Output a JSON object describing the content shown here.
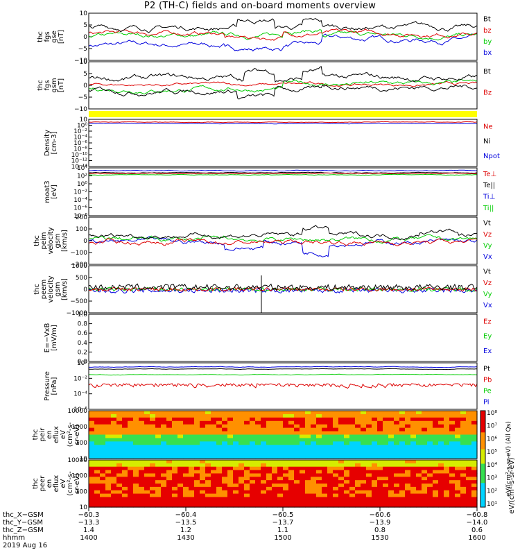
{
  "title": "P2 (TH-C) fields and on-board moments overview",
  "colors": {
    "black": "#000000",
    "red": "#dd0000",
    "green": "#00cc00",
    "blue": "#0000dd",
    "yellow": "#ffff00"
  },
  "chart_data": [
    {
      "type": "line",
      "ylabel": [
        "thc",
        "fgs",
        "gse",
        "[nT]"
      ],
      "ylim": [
        -10,
        10
      ],
      "yticks": [
        "10",
        "5",
        "0",
        "−5",
        "−10"
      ],
      "legend": [
        {
          "text": "Bt",
          "color": "black"
        },
        {
          "text": "bz",
          "color": "red"
        },
        {
          "text": "by",
          "color": "green"
        },
        {
          "text": "bx",
          "color": "blue"
        }
      ]
    },
    {
      "type": "line",
      "ylabel": [
        "thc",
        "fgs",
        "gsm",
        "[nT]"
      ],
      "ylim": [
        -10,
        10
      ],
      "yticks": [
        "10",
        "5",
        "0",
        "−5",
        "−10"
      ],
      "legend": [
        {
          "text": "Bt",
          "color": "black"
        },
        {
          "text": "Bz",
          "color": "red"
        }
      ]
    },
    {
      "type": "line",
      "ylabel": [
        "Density",
        "[cm-3]"
      ],
      "ylog": true,
      "yticks": [
        "10⁲",
        "10⁰",
        "10⁻²",
        "10⁻⁴",
        "10⁻⁶",
        "10⁻⁸",
        "10⁻¹⁰",
        "10⁻¹²",
        "10⁻¹⁴"
      ],
      "legend": [
        {
          "text": "Ne",
          "color": "red"
        },
        {
          "text": "Ni",
          "color": "black"
        },
        {
          "text": "Npot",
          "color": "blue"
        }
      ]
    },
    {
      "type": "line",
      "ylabel": [
        "moat3",
        "[eV]"
      ],
      "ylog": true,
      "yticks": [
        "10⁴",
        "10²",
        "10⁰",
        "10⁻²",
        "10⁻⁴",
        "10⁻⁶",
        "10⁻⁸"
      ],
      "legend": [
        {
          "text": "Te⊥",
          "color": "red"
        },
        {
          "text": "Te||",
          "color": "black"
        },
        {
          "text": "Ti⊥",
          "color": "blue"
        },
        {
          "text": "Ti||",
          "color": "green"
        }
      ]
    },
    {
      "type": "line",
      "ylabel": [
        "thc",
        "peim",
        "velocity",
        "gsm",
        "[km/s]"
      ],
      "ylim": [
        -200,
        200
      ],
      "yticks": [
        "200",
        "100",
        "0",
        "−100",
        "−200"
      ],
      "legend": [
        {
          "text": "Vt",
          "color": "black"
        },
        {
          "text": "Vz",
          "color": "red"
        },
        {
          "text": "Vy",
          "color": "green"
        },
        {
          "text": "Vx",
          "color": "blue"
        }
      ]
    },
    {
      "type": "line",
      "ylabel": [
        "thc",
        "peem",
        "velocity",
        "gsm",
        "[km/s]"
      ],
      "ylim": [
        -1000,
        1000
      ],
      "yticks": [
        "1000",
        "500",
        "0",
        "−500",
        "−1000"
      ],
      "legend": [
        {
          "text": "Vt",
          "color": "black"
        },
        {
          "text": "Vz",
          "color": "red"
        },
        {
          "text": "Vy",
          "color": "green"
        },
        {
          "text": "Vx",
          "color": "blue"
        }
      ]
    },
    {
      "type": "line",
      "ylabel": [
        "E=−VxB",
        "[mV/m]"
      ],
      "ylim": [
        0,
        1
      ],
      "yticks": [
        "1.0",
        "0.8",
        "0.6",
        "0.4",
        "0.2",
        "0.0"
      ],
      "legend": [
        {
          "text": "Ez",
          "color": "red"
        },
        {
          "text": "Ey",
          "color": "green"
        },
        {
          "text": "Ex",
          "color": "blue"
        }
      ]
    },
    {
      "type": "line",
      "ylabel": [
        "Pressure",
        "[nPa]"
      ],
      "ylog": true,
      "yticks": [
        "10⁰",
        "10⁻²",
        "10⁻⁴",
        "10⁻⁶"
      ],
      "legend": [
        {
          "text": "Pt",
          "color": "black"
        },
        {
          "text": "Pb",
          "color": "red"
        },
        {
          "text": "Pe",
          "color": "green"
        },
        {
          "text": "Pi",
          "color": "blue"
        }
      ]
    },
    {
      "type": "heatmap",
      "ylabel": [
        "thc",
        "peir",
        "en",
        "eflux",
        "eV",
        "(cm²-s-",
        "sr-eV)"
      ],
      "ylog": true,
      "yticks": [
        "10000",
        "1000",
        "100",
        "10"
      ]
    },
    {
      "type": "heatmap",
      "ylabel": [
        "thc",
        "peer",
        "en",
        "eflux",
        "eV",
        "(cm²-s-",
        "sr-eV)"
      ],
      "ylog": true,
      "yticks": [
        "10000",
        "1000",
        "100",
        "10"
      ]
    }
  ],
  "colorbar": {
    "ticks": [
      "10⁸",
      "10⁷",
      "10⁶",
      "10⁵",
      "10⁴",
      "10³",
      "10²",
      "10¹"
    ],
    "label": "eV/(cm²-s-sr-eV) (All Qs)",
    "label2": "eV/(cm²-s-sr-eV)"
  },
  "x_axis": {
    "rows": [
      {
        "label": "thc_X−GSM",
        "values": [
          "−60.3",
          "−60.4",
          "−60.5",
          "−60.6",
          "−60.8"
        ]
      },
      {
        "label": "thc_Y−GSM",
        "values": [
          "−13.3",
          "−13.5",
          "−13.7",
          "−13.9",
          "−14.0"
        ]
      },
      {
        "label": "thc_Z−GSM",
        "values": [
          "1.4",
          "1.2",
          "1.1",
          "0.8",
          "0.6"
        ]
      },
      {
        "label": "hhmm",
        "values": [
          "1400",
          "1430",
          "1500",
          "1530",
          "1600"
        ]
      }
    ],
    "date": "2019 Aug 16"
  }
}
